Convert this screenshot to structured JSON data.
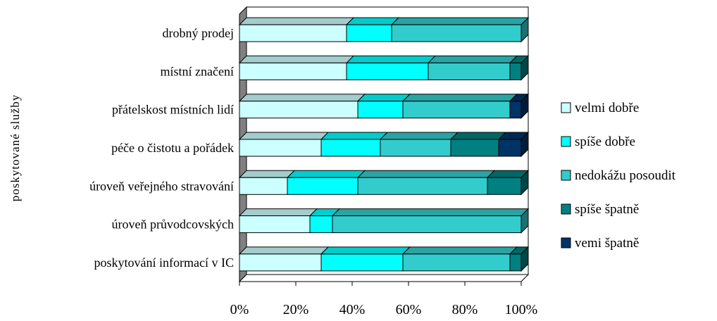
{
  "chart_data": {
    "type": "bar",
    "orientation": "horizontal",
    "stacked": "percent",
    "style": "3d",
    "title": "",
    "xlabel": "",
    "ylabel": "poskytované služby",
    "xlim": [
      0,
      100
    ],
    "x_ticks": [
      "0%",
      "20%",
      "40%",
      "60%",
      "80%",
      "100%"
    ],
    "legend_position": "right",
    "categories": [
      "drobný prodej",
      "místní značení",
      "přátelskost místních lidí",
      "péče o čistotu a pořádek",
      "úroveň veřejného stravování",
      "úroveň průvodcovských",
      "poskytování informací v IC"
    ],
    "series": [
      {
        "name": "velmi dobře",
        "color": "#ccffff",
        "values": [
          38,
          38,
          42,
          29,
          17,
          25,
          29
        ]
      },
      {
        "name": "spíše dobře",
        "color": "#00ffff",
        "values": [
          16,
          29,
          16,
          21,
          25,
          8,
          29
        ]
      },
      {
        "name": "nedokážu posoudit",
        "color": "#33cccc",
        "values": [
          46,
          29,
          38,
          25,
          46,
          67,
          38
        ]
      },
      {
        "name": "spíše špatně",
        "color": "#008080",
        "values": [
          0,
          4,
          0,
          17,
          12,
          0,
          4
        ]
      },
      {
        "name": "vemi špatně",
        "color": "#003366",
        "values": [
          0,
          0,
          4,
          8,
          0,
          0,
          0
        ]
      }
    ]
  }
}
